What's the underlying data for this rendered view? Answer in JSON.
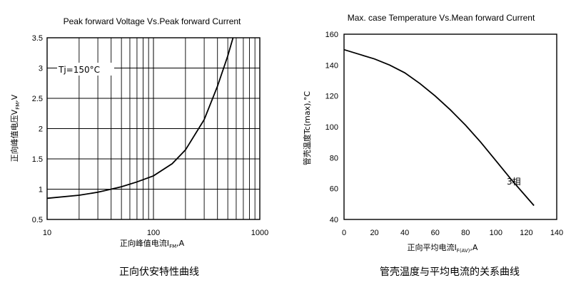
{
  "chart_data": [
    {
      "type": "line",
      "title": "Peak forward Voltage Vs.Peak forward Current",
      "ylabel": "正向峰值电压V",
      "ylabel_sub": "FM",
      "ylabel_unit": ",V",
      "xlabel": "正向峰值电流I",
      "xlabel_sub": "FM",
      "xlabel_unit": ",A",
      "caption": "正向伏安特性曲线",
      "x_scale": "log",
      "xlim": [
        10,
        1000
      ],
      "ylim": [
        0.5,
        3.5
      ],
      "x_ticks": [
        10,
        100,
        1000
      ],
      "x_tick_labels": [
        "10",
        "100",
        "1000"
      ],
      "y_ticks": [
        0.5,
        1,
        1.5,
        2,
        2.5,
        3,
        3.5
      ],
      "y_tick_labels": [
        "0.5",
        "1",
        "1.5",
        "2",
        "2.5",
        "3",
        "3.5"
      ],
      "grid": true,
      "annotation": "Tj=150°C",
      "series": [
        {
          "x": [
            10,
            20,
            30,
            40,
            50,
            70,
            100,
            150,
            200,
            300,
            400,
            500,
            560
          ],
          "y": [
            0.85,
            0.9,
            0.95,
            1.0,
            1.04,
            1.12,
            1.22,
            1.42,
            1.65,
            2.15,
            2.7,
            3.2,
            3.5
          ]
        }
      ]
    },
    {
      "type": "line",
      "title": "Max. case Temperature Vs.Mean forward Current",
      "ylabel": "管壳温度Tc(max),°C",
      "xlabel": "正向平均电流I",
      "xlabel_sub": "F(AV)",
      "xlabel_unit": ",A",
      "caption": "管壳温度与平均电流的关系曲线",
      "xlim": [
        0,
        140
      ],
      "ylim": [
        40,
        160
      ],
      "x_ticks": [
        0,
        20,
        40,
        60,
        80,
        100,
        120,
        140
      ],
      "x_tick_labels": [
        "0",
        "20",
        "40",
        "60",
        "80",
        "100",
        "120",
        "140"
      ],
      "y_ticks": [
        40,
        60,
        80,
        100,
        120,
        140,
        160
      ],
      "y_tick_labels": [
        "40",
        "60",
        "80",
        "100",
        "120",
        "140",
        "160"
      ],
      "grid": false,
      "annotation": "3相",
      "series": [
        {
          "x": [
            0,
            10,
            20,
            30,
            40,
            50,
            60,
            70,
            80,
            90,
            100,
            110,
            125
          ],
          "y": [
            150,
            147,
            144,
            140,
            135,
            128,
            120,
            111,
            101,
            90,
            78,
            66,
            49
          ]
        }
      ]
    }
  ]
}
